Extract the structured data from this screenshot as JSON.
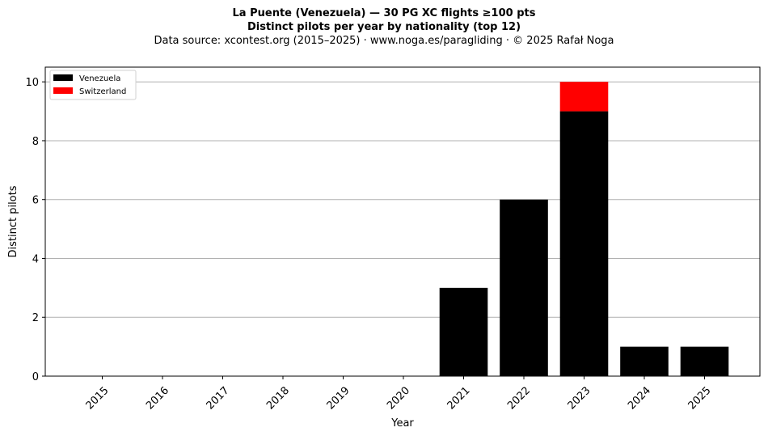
{
  "title": "La Puente (Venezuela)  —  30 PG XC flights ≥100 pts",
  "subtitle": "Distinct pilots per year by nationality (top 12)",
  "source": "Data source: xcontest.org (2015–2025)  ·  www.noga.es/paragliding  ·  © 2025 Rafał Noga",
  "chart_data": {
    "type": "bar",
    "stacked": true,
    "title": "La Puente (Venezuela)  —  30 PG XC flights ≥100 pts",
    "subtitle": "Distinct pilots per year by nationality (top 12)",
    "xlabel": "Year",
    "ylabel": "Distinct pilots",
    "categories": [
      "2015",
      "2016",
      "2017",
      "2018",
      "2019",
      "2020",
      "2021",
      "2022",
      "2023",
      "2024",
      "2025"
    ],
    "series": [
      {
        "name": "Venezuela",
        "color": "#000000",
        "values": [
          0,
          0,
          0,
          0,
          0,
          0,
          3,
          6,
          9,
          1,
          1
        ]
      },
      {
        "name": "Switzerland",
        "color": "#ff0000",
        "values": [
          0,
          0,
          0,
          0,
          0,
          0,
          0,
          0,
          1,
          0,
          0
        ]
      }
    ],
    "ylim": [
      0,
      10.5
    ],
    "yticks": [
      0,
      2,
      4,
      6,
      8,
      10
    ],
    "grid": "y",
    "legend_position": "top-left"
  }
}
